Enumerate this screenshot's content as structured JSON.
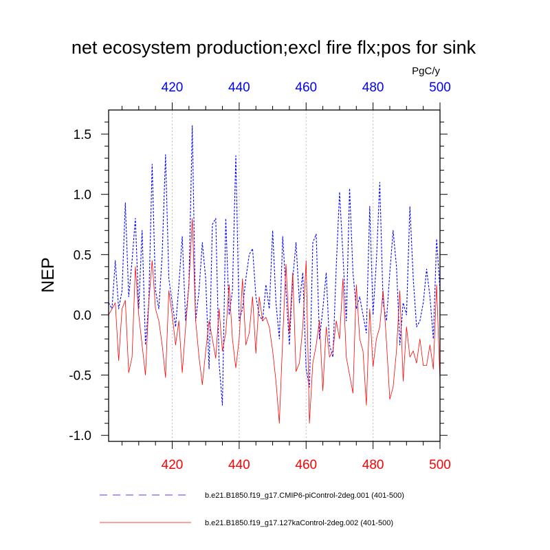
{
  "chart_data": {
    "type": "line",
    "title": "net ecosystem production;excl fire flx;pos for sink",
    "units": "PgC/y",
    "ylabel": "NEP",
    "xlim": [
      401,
      500
    ],
    "ylim": [
      -1.05,
      1.7
    ],
    "x_ticks": [
      420,
      440,
      460,
      480,
      500
    ],
    "y_ticks": [
      -1.0,
      -0.5,
      0.0,
      0.5,
      1.0,
      1.5
    ],
    "y_tick_labels": [
      "-1.0",
      "-0.5",
      "0.0",
      "0.5",
      "1.0",
      "1.5"
    ],
    "colors": {
      "top_axis": "#0000ff",
      "bottom_axis": "#ff0000",
      "series_1": "#0000ff",
      "series_2": "#ff0000",
      "grid": "#bbbbbb"
    },
    "x": [
      401,
      402,
      403,
      404,
      405,
      406,
      407,
      408,
      409,
      410,
      411,
      412,
      413,
      414,
      415,
      416,
      417,
      418,
      419,
      420,
      421,
      422,
      423,
      424,
      425,
      426,
      427,
      428,
      429,
      430,
      431,
      432,
      433,
      434,
      435,
      436,
      437,
      438,
      439,
      440,
      441,
      442,
      443,
      444,
      445,
      446,
      447,
      448,
      449,
      450,
      451,
      452,
      453,
      454,
      455,
      456,
      457,
      458,
      459,
      460,
      461,
      462,
      463,
      464,
      465,
      466,
      467,
      468,
      469,
      470,
      471,
      472,
      473,
      474,
      475,
      476,
      477,
      478,
      479,
      480,
      481,
      482,
      483,
      484,
      485,
      486,
      487,
      488,
      489,
      490,
      491,
      492,
      493,
      494,
      495,
      496,
      497,
      498,
      499,
      500
    ],
    "series": [
      {
        "name": "b.e21.B1850.f19_g17.CMIP6-piControl-2deg.001 (401-500)",
        "style": "dashed",
        "values": [
          0.1,
          0.05,
          0.45,
          0.05,
          0.2,
          0.93,
          0.15,
          0.45,
          0.8,
          0.05,
          0.7,
          -0.25,
          0.1,
          1.25,
          0.2,
          0.05,
          0.5,
          1.33,
          0.3,
          0.1,
          -0.1,
          0.25,
          0.65,
          -0.05,
          0.25,
          1.57,
          -0.05,
          0.2,
          0.6,
          0.3,
          -0.45,
          0.75,
          0.8,
          -0.4,
          -0.75,
          0.8,
          0.0,
          0.2,
          1.32,
          -0.05,
          0.05,
          0.3,
          0.5,
          0.55,
          0.15,
          0.0,
          -0.05,
          0.25,
          0.05,
          0.7,
          0.1,
          -0.2,
          0.65,
          0.2,
          -0.25,
          0.3,
          0.6,
          0.1,
          0.35,
          -0.45,
          -0.6,
          0.6,
          0.67,
          -0.2,
          0.05,
          0.35,
          -0.25,
          -0.35,
          0.4,
          1.02,
          0.5,
          -0.05,
          1.05,
          0.35,
          0.05,
          0.15,
          0.0,
          -0.15,
          0.9,
          0.0,
          0.45,
          1.1,
          0.1,
          -0.05,
          0.35,
          0.7,
          0.4,
          -0.25,
          0.1,
          0.0,
          0.9,
          0.3,
          -0.1,
          -0.05,
          0.1,
          0.38,
          0.15,
          -0.2,
          0.63,
          0.2
        ]
      },
      {
        "name": "b.e21.B1850.f19_g17.127kaControl-2deg.002 (401-500)",
        "style": "solid",
        "values": [
          0.0,
          0.05,
          0.1,
          -0.38,
          0.05,
          0.12,
          -0.48,
          -0.35,
          0.4,
          0.0,
          -0.25,
          -0.5,
          0.1,
          0.45,
          0.05,
          -0.05,
          -0.25,
          -0.52,
          0.2,
          0.0,
          -0.25,
          -0.05,
          -0.48,
          -0.1,
          0.25,
          0.8,
          -0.05,
          -0.35,
          -0.58,
          -0.3,
          -0.05,
          -0.2,
          -0.36,
          0.05,
          -0.3,
          -0.15,
          0.25,
          -0.2,
          -0.44,
          -0.2,
          0.3,
          -0.25,
          -0.15,
          0.15,
          -0.32,
          0.15,
          -0.05,
          -0.02,
          -0.1,
          -0.3,
          -0.55,
          -0.9,
          -0.2,
          0.42,
          -0.15,
          0.35,
          -0.47,
          -0.4,
          -0.1,
          0.45,
          -0.9,
          -0.4,
          -0.25,
          -0.05,
          -0.63,
          -0.1,
          -0.35,
          -0.3,
          -0.05,
          -0.2,
          0.3,
          -0.35,
          -0.5,
          -0.65,
          0.25,
          -0.2,
          -0.3,
          -0.75,
          0.05,
          -0.43,
          -0.2,
          -0.1,
          0.2,
          -0.22,
          -0.7,
          -0.6,
          -0.3,
          0.2,
          -0.55,
          -0.1,
          -0.35,
          -0.3,
          -0.4,
          -0.2,
          -0.42,
          -0.42,
          -0.25,
          -0.45,
          0.25,
          -0.55
        ]
      }
    ]
  }
}
